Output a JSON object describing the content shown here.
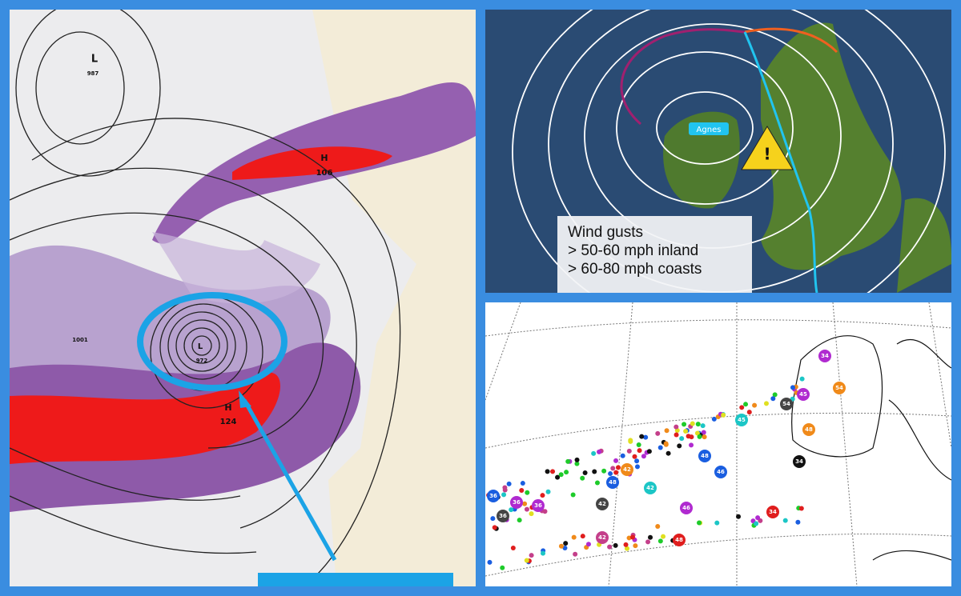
{
  "left_map": {
    "labels": [
      "L",
      "987",
      "H",
      "106",
      "L",
      "972",
      "H",
      "124",
      "1001"
    ]
  },
  "top_right_map": {
    "storm_name": "Agnes",
    "warning_icon": "!",
    "info_box": [
      "Wind gusts",
      "> 50-60 mph inland",
      "> 60-80 mph coasts"
    ]
  },
  "bottom_right_map": {
    "markers": [
      "34",
      "54",
      "45",
      "34",
      "36",
      "46",
      "48",
      "42",
      "45",
      "36",
      "36",
      "36",
      "42",
      "46",
      "48",
      "42",
      "48",
      "54",
      "34",
      "42",
      "48"
    ]
  }
}
